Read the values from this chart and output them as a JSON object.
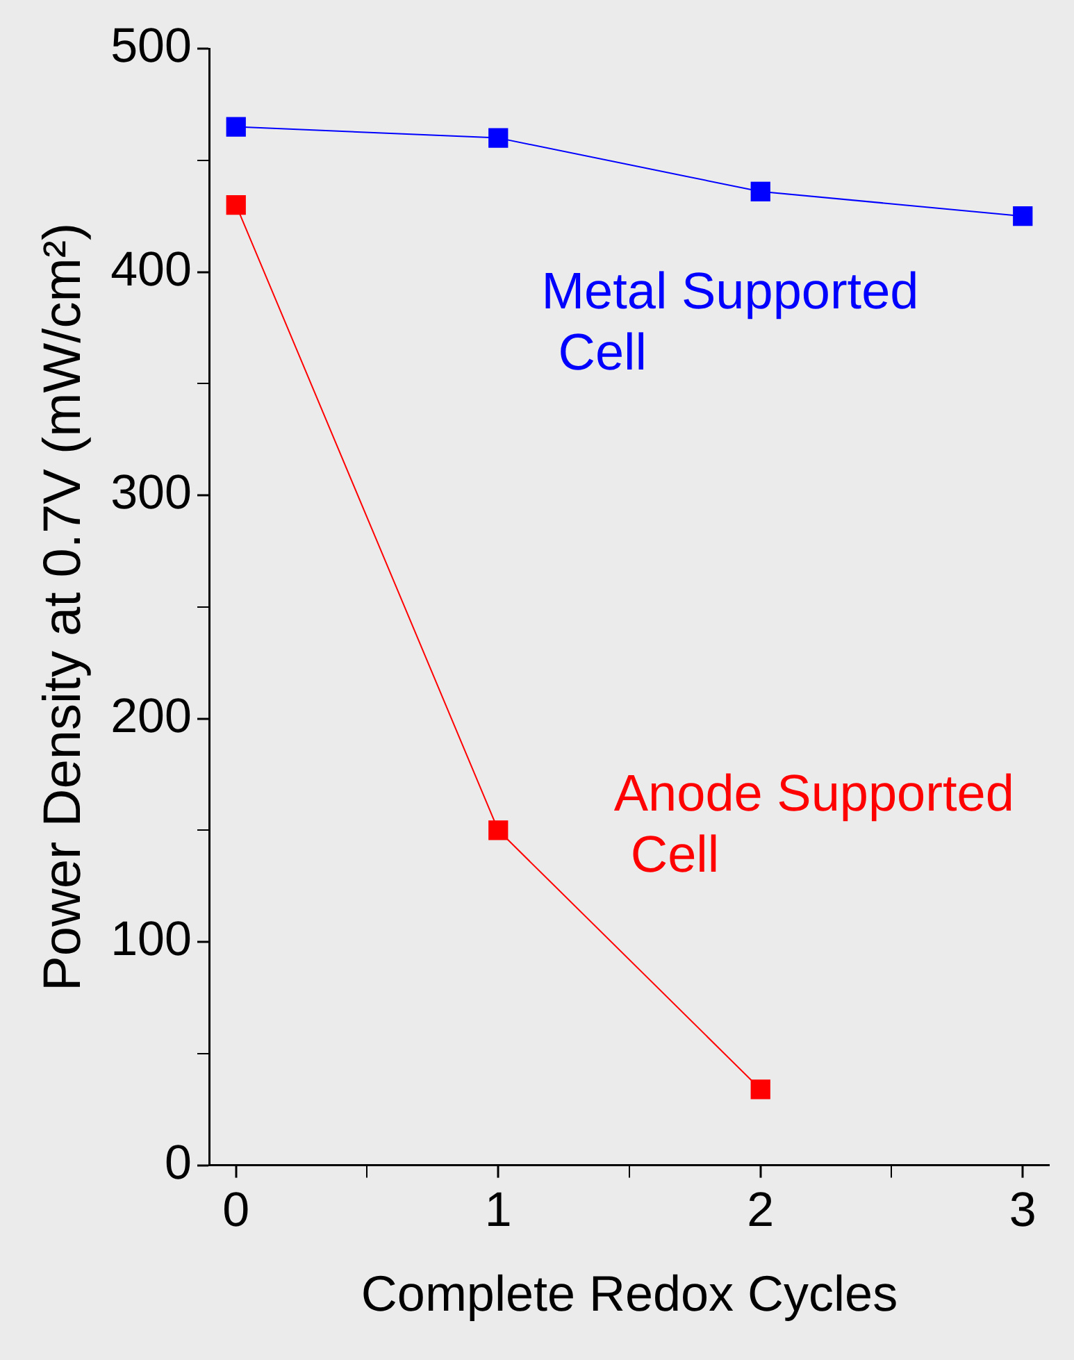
{
  "chart_data": {
    "type": "line",
    "xlabel": "Complete Redox Cycles",
    "ylabel": "Power Density at 0.7V (mW/cm²)",
    "x": [
      0,
      1,
      2,
      3
    ],
    "series": [
      {
        "name": "Metal Supported Cell",
        "color": "#0000ff",
        "values": [
          465,
          460,
          436,
          425
        ]
      },
      {
        "name": "Anode Supported Cell",
        "color": "#ff0000",
        "values": [
          430,
          150,
          34,
          null
        ]
      }
    ],
    "xlim": [
      -0.1,
      3.1
    ],
    "xticks": [
      0,
      {
        "value": 0.5,
        "label": null
      },
      1,
      {
        "value": 1.5,
        "label": null
      },
      2,
      {
        "value": 2.5,
        "label": null
      },
      3
    ],
    "ylim": [
      0,
      500
    ],
    "yticks": [
      0,
      {
        "value": 50,
        "label": null
      },
      100,
      {
        "value": 150,
        "label": null
      },
      200,
      {
        "value": 250,
        "label": null
      },
      300,
      {
        "value": 350,
        "label": null
      },
      400,
      {
        "value": 450,
        "label": null
      },
      500
    ],
    "grid": false,
    "legend": false,
    "marker": "square",
    "line_style": "solid"
  }
}
